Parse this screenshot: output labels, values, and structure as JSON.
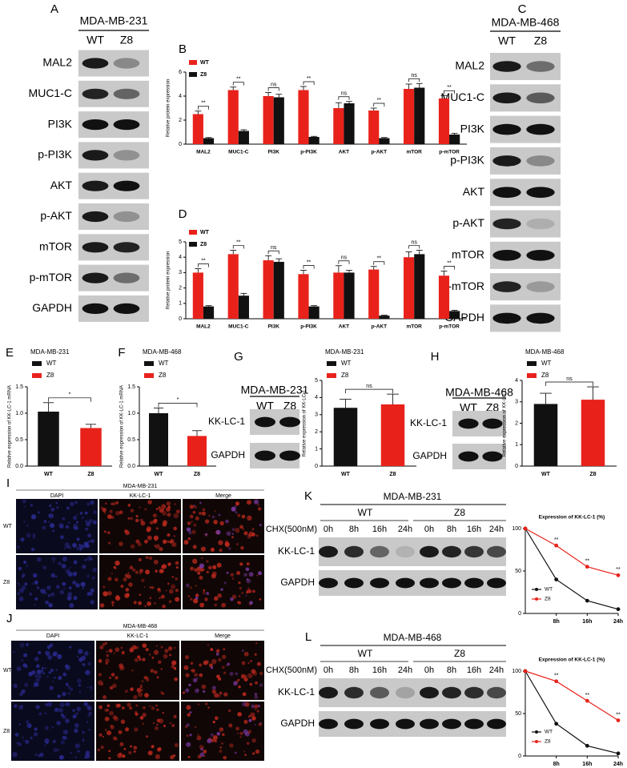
{
  "blots": {
    "A": {
      "panel": "A",
      "cell_line": "MDA-MB-231",
      "groups": [
        "WT",
        "Z8"
      ],
      "proteins": [
        "MAL2",
        "MUC1-C",
        "PI3K",
        "p-PI3K",
        "AKT",
        "p-AKT",
        "mTOR",
        "p-mTOR",
        "GAPDH"
      ]
    },
    "C": {
      "panel": "C",
      "cell_line": "MDA-MB-468",
      "groups": [
        "WT",
        "Z8"
      ],
      "proteins": [
        "MAL2",
        "MUC1-C",
        "PI3K",
        "p-PI3K",
        "AKT",
        "p-AKT",
        "mTOR",
        "p-mTOR",
        "GAPDH"
      ]
    },
    "G": {
      "panel": "G",
      "cell_line": "MDA-MB-231",
      "groups": [
        "WT",
        "Z8"
      ],
      "proteins": [
        "KK-LC-1",
        "GAPDH"
      ]
    },
    "H": {
      "panel": "H",
      "cell_line": "MDA-MB-468",
      "groups": [
        "WT",
        "Z8"
      ],
      "proteins": [
        "KK-LC-1",
        "GAPDH"
      ]
    },
    "K": {
      "panel": "K",
      "cell_line": "MDA-MB-231",
      "groups": [
        "WT",
        "Z8"
      ],
      "treatment": "CHX(500nM)",
      "times": [
        "0h",
        "8h",
        "16h",
        "24h",
        "0h",
        "8h",
        "16h",
        "24h"
      ],
      "proteins": [
        "KK-LC-1",
        "GAPDH"
      ]
    },
    "L": {
      "panel": "L",
      "cell_line": "MDA-MB-468",
      "groups": [
        "WT",
        "Z8"
      ],
      "treatment": "CHX(500nM)",
      "times": [
        "0h",
        "8h",
        "16h",
        "24h",
        "0h",
        "8h",
        "16h",
        "24h"
      ],
      "proteins": [
        "KK-LC-1",
        "GAPDH"
      ]
    }
  },
  "if_panels": {
    "I": {
      "panel": "I",
      "cell_line": "MDA-MB-231",
      "channels": [
        "DAPI",
        "KK-LC-1",
        "Merge"
      ],
      "rows": [
        "WT",
        "Z8"
      ]
    },
    "J": {
      "panel": "J",
      "cell_line": "MDA-MB-468",
      "channels": [
        "DAPI",
        "KK-LC-1",
        "Merge"
      ],
      "rows": [
        "WT",
        "Z8"
      ]
    }
  },
  "chart_data": [
    {
      "panel": "B",
      "type": "bar",
      "ylabel": "Relative protein expression",
      "categories": [
        "MAL2",
        "MUC1-C",
        "PI3K",
        "p-PI3K",
        "AKT",
        "p-AKT",
        "mTOR",
        "p-mTOR"
      ],
      "series": [
        {
          "name": "WT",
          "color": "#e8221b",
          "values": [
            2.5,
            4.5,
            4.0,
            4.5,
            3.0,
            2.8,
            4.6,
            3.8
          ],
          "errors": [
            0.25,
            0.25,
            0.3,
            0.3,
            0.45,
            0.2,
            0.4,
            0.25
          ]
        },
        {
          "name": "Z8",
          "color": "#111111",
          "values": [
            0.5,
            1.1,
            3.9,
            0.6,
            3.4,
            0.5,
            4.7,
            0.8
          ],
          "errors": [
            0.05,
            0.1,
            0.25,
            0.05,
            0.15,
            0.05,
            0.35,
            0.1
          ]
        }
      ],
      "ylim": [
        0,
        6
      ],
      "yticks": [
        0,
        2,
        4,
        6
      ],
      "annotations": [
        "**",
        "**",
        "ns",
        "**",
        "ns",
        "**",
        "ns",
        "**"
      ],
      "legend": "top-left"
    },
    {
      "panel": "D",
      "type": "bar",
      "ylabel": "Relative protein expression",
      "categories": [
        "MAL2",
        "MUC1-C",
        "PI3K",
        "p-PI3K",
        "AKT",
        "p-AKT",
        "mTOR",
        "p-mTOR"
      ],
      "series": [
        {
          "name": "WT",
          "color": "#e8221b",
          "values": [
            3.0,
            4.2,
            3.8,
            2.9,
            3.0,
            3.2,
            4.0,
            2.8
          ],
          "errors": [
            0.25,
            0.25,
            0.3,
            0.25,
            0.45,
            0.2,
            0.35,
            0.3
          ]
        },
        {
          "name": "Z8",
          "color": "#111111",
          "values": [
            0.8,
            1.5,
            3.7,
            0.8,
            3.0,
            0.2,
            4.2,
            0.5
          ],
          "errors": [
            0.05,
            0.15,
            0.2,
            0.05,
            0.15,
            0.03,
            0.25,
            0.05
          ]
        }
      ],
      "ylim": [
        0,
        5
      ],
      "yticks": [
        0,
        1,
        2,
        3,
        4,
        5
      ],
      "annotations": [
        "**",
        "**",
        "ns",
        "**",
        "ns",
        "**",
        "ns",
        "**"
      ],
      "legend": "top-left"
    },
    {
      "panel": "E",
      "type": "bar",
      "title": "MDA-MB-231",
      "ylabel": "Relative expression of KK-LC-1 mRNA",
      "categories": [
        "WT",
        "Z8"
      ],
      "colors": [
        "#111111",
        "#e8221b"
      ],
      "values": [
        1.03,
        0.72
      ],
      "errors": [
        0.17,
        0.07
      ],
      "ylim": [
        0,
        1.5
      ],
      "yticks": [
        {
          "value": 0,
          "label": "0.0"
        },
        0.5,
        {
          "value": 1,
          "label": "1.0"
        },
        1.5
      ],
      "annotation": "*"
    },
    {
      "panel": "F",
      "type": "bar",
      "title": "MDA-MB-468",
      "ylabel": "Relative expression of KK-LC-1 mRNA",
      "categories": [
        "WT",
        "Z8"
      ],
      "colors": [
        "#111111",
        "#e8221b"
      ],
      "values": [
        1.0,
        0.57
      ],
      "errors": [
        0.1,
        0.1
      ],
      "ylim": [
        0,
        1.5
      ],
      "yticks": [
        {
          "value": 0,
          "label": "0.0"
        },
        0.5,
        {
          "value": 1,
          "label": "1.0"
        },
        1.5
      ],
      "annotation": "*"
    },
    {
      "type": "bar",
      "title": "MDA-MB-231",
      "ylabel": "Relative expression of KK-LC-1",
      "categories": [
        "WT",
        "Z8"
      ],
      "colors": [
        "#111111",
        "#e8221b"
      ],
      "values": [
        3.4,
        3.6
      ],
      "errors": [
        0.5,
        0.6
      ],
      "ylim": [
        0,
        5
      ],
      "yticks": [
        0,
        1,
        2,
        3,
        4,
        5
      ],
      "annotation": "ns"
    },
    {
      "type": "bar",
      "title": "MDA-MB-468",
      "ylabel": "Relative expression of KK-LC-1",
      "categories": [
        "WT",
        "Z8"
      ],
      "colors": [
        "#111111",
        "#e8221b"
      ],
      "values": [
        2.9,
        3.1
      ],
      "errors": [
        0.5,
        0.6
      ],
      "ylim": [
        0,
        4
      ],
      "yticks": [
        0,
        1,
        2,
        3,
        4
      ],
      "annotation": "ns"
    },
    {
      "type": "line",
      "title": "Expression of KK-LC-1 (%)",
      "categories": [
        null,
        "8h",
        "16h",
        "24h"
      ],
      "series": [
        {
          "name": "WT",
          "color": "#111111",
          "values": [
            100,
            40,
            15,
            5
          ]
        },
        {
          "name": "Z8",
          "color": "#e8221b",
          "values": [
            100,
            80,
            55,
            45
          ]
        }
      ],
      "annotations": [
        null,
        "**",
        "**",
        "**"
      ],
      "ylim": [
        0,
        100
      ],
      "yticks": [
        0,
        50,
        100
      ],
      "legend": "lower-left"
    },
    {
      "type": "line",
      "title": "Expression of KK-LC-1 (%)",
      "categories": [
        null,
        "8h",
        "16h",
        "24h"
      ],
      "series": [
        {
          "name": "WT",
          "color": "#111111",
          "values": [
            100,
            38,
            12,
            3
          ]
        },
        {
          "name": "Z8",
          "color": "#e8221b",
          "values": [
            100,
            88,
            65,
            42
          ]
        }
      ],
      "annotations": [
        null,
        "**",
        "**",
        "**"
      ],
      "ylim": [
        0,
        100
      ],
      "yticks": [
        0,
        50,
        100
      ],
      "legend": "lower-left"
    }
  ]
}
